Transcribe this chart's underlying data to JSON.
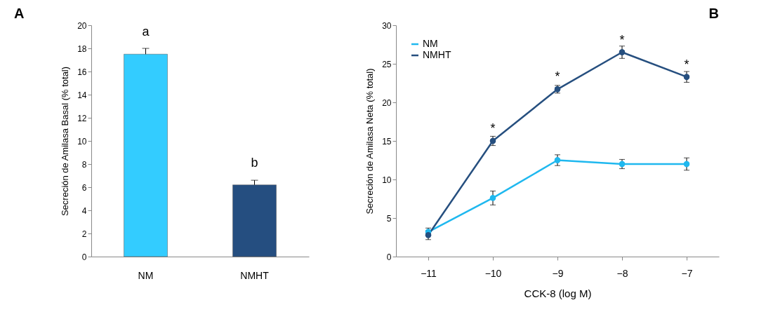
{
  "chart_data": [
    {
      "type": "bar",
      "title": "A",
      "ylabel": "Secreción de Amilasa Basal (% total)",
      "categories": [
        "NM",
        "NMHT"
      ],
      "values": [
        17.5,
        6.2
      ],
      "colors": [
        "#33ccff",
        "#254e80"
      ],
      "errors": [
        [
          17.5,
          18.0
        ],
        [
          6.2,
          6.6
        ]
      ],
      "ylim": [
        0,
        20
      ],
      "yticks": [
        0,
        2,
        4,
        6,
        8,
        10,
        12,
        14,
        16,
        18,
        20
      ],
      "grid": false,
      "legend": false,
      "annotations": [
        {
          "text": "a",
          "x": "NM",
          "y": 17.5
        },
        {
          "text": "b",
          "x": "NMHT",
          "y": 6.2
        }
      ]
    },
    {
      "type": "line",
      "title": "B",
      "xlabel": "CCK-8 (log M)",
      "ylabel": "Secreción de Amilasa Neta (% total)",
      "x": [
        -11,
        -10,
        -9,
        -8,
        -7
      ],
      "xlim": [
        -11.5,
        -6.5
      ],
      "xticks": [
        -11,
        -10,
        -9,
        -8,
        -7
      ],
      "ylim": [
        0,
        30
      ],
      "yticks": [
        0,
        5,
        10,
        15,
        20,
        25,
        30
      ],
      "grid": false,
      "legend": "top left",
      "marker": "circle",
      "series": [
        {
          "name": "NM",
          "color": "#1fb8ef",
          "values": [
            3.2,
            7.6,
            12.5,
            12.0,
            12.0
          ],
          "errors": [
            0.5,
            0.9,
            0.7,
            0.6,
            0.8
          ]
        },
        {
          "name": "NMHT",
          "color": "#264f7f",
          "values": [
            2.8,
            15.0,
            21.7,
            26.5,
            23.3
          ],
          "errors": [
            0.6,
            0.6,
            0.5,
            0.8,
            0.7
          ]
        }
      ],
      "annotations": [
        {
          "text": "*",
          "x": -10,
          "y": 15.0
        },
        {
          "text": "*",
          "x": -9,
          "y": 21.7
        },
        {
          "text": "*",
          "x": -8,
          "y": 26.5
        },
        {
          "text": "*",
          "x": -7,
          "y": 23.3
        }
      ]
    }
  ]
}
